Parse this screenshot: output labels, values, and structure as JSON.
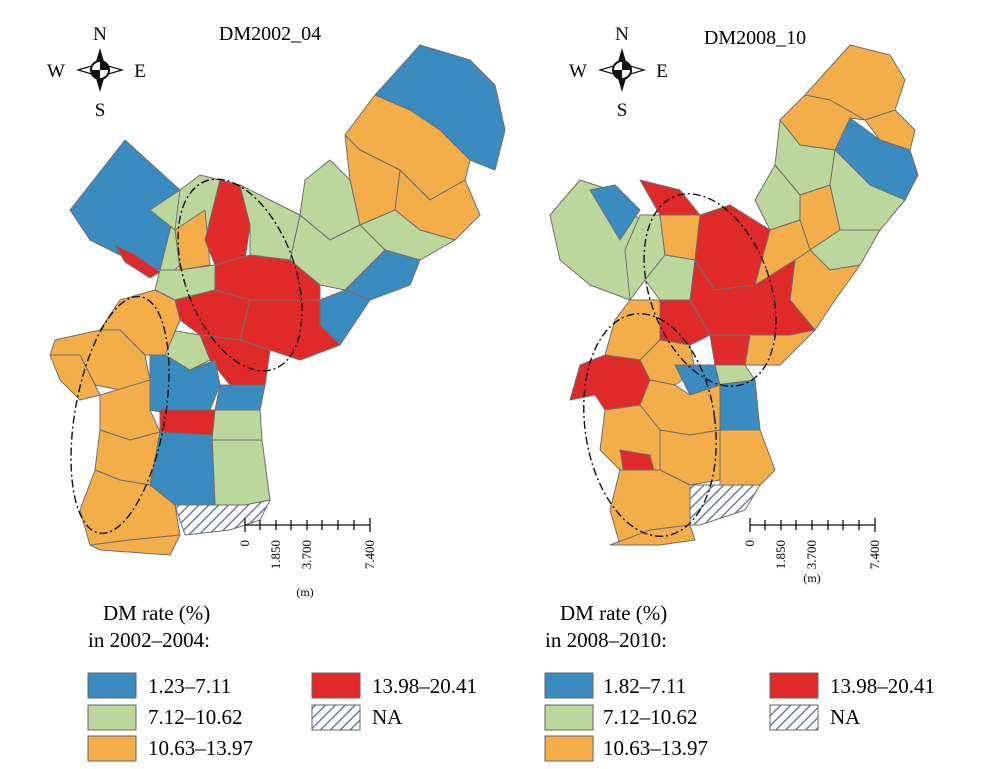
{
  "colors": {
    "blue": "#3a8bbf",
    "green": "#bcd79b",
    "orange": "#f3ae4a",
    "red": "#e02a2a",
    "na": "#ffffff",
    "border": "#6f6f6f"
  },
  "compass": {
    "n": "N",
    "s": "S",
    "e": "E",
    "w": "W"
  },
  "panels": [
    {
      "id": "left",
      "title": "DM2002_04",
      "legend": {
        "title_line1": "DM rate (%)",
        "title_line2": "in 2002–2004:",
        "items": [
          {
            "label": "1.23–7.11",
            "color_key": "blue"
          },
          {
            "label": "7.12–10.62",
            "color_key": "green"
          },
          {
            "label": "10.63–13.97",
            "color_key": "orange"
          },
          {
            "label": "13.98–20.41",
            "color_key": "red"
          },
          {
            "label": "NA",
            "color_key": "na"
          }
        ]
      },
      "scale": {
        "ticks": [
          "0",
          "1.850",
          "3.700",
          "7.400"
        ],
        "unit": "(m)"
      }
    },
    {
      "id": "right",
      "title": "DM2008_10",
      "legend": {
        "title_line1": "DM rate (%)",
        "title_line2": "in 2008–2010:",
        "items": [
          {
            "label": "1.82–7.11",
            "color_key": "blue"
          },
          {
            "label": "7.12–10.62",
            "color_key": "green"
          },
          {
            "label": "10.63–13.97",
            "color_key": "orange"
          },
          {
            "label": "13.98–20.41",
            "color_key": "red"
          },
          {
            "label": "NA",
            "color_key": "na"
          }
        ]
      },
      "scale": {
        "ticks": [
          "0",
          "1.850",
          "3.700",
          "7.400"
        ],
        "unit": "(m)"
      }
    }
  ]
}
